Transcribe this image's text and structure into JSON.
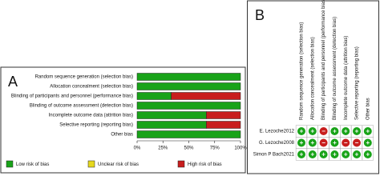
{
  "chart_data": [
    {
      "type": "stacked-barh",
      "panel_label": "A",
      "categories": [
        "Random sequence generation (selection bias)",
        "Allocation concealment (selection bias)",
        "Blinding of participants and personnel (performance bias)",
        "Blinding of outcome assessment (detection bias)",
        "Incomplete outcome data (attrition bias)",
        "Selective reporting (reporting bias)",
        "Other bias"
      ],
      "series": [
        {
          "name": "Low risk of bias",
          "color": "#19a319",
          "values": [
            100,
            100,
            33,
            100,
            67,
            67,
            100
          ]
        },
        {
          "name": "Unclear risk of bias",
          "color": "#e6d81e",
          "values": [
            0,
            0,
            0,
            0,
            0,
            0,
            0
          ]
        },
        {
          "name": "High risk of bias",
          "color": "#c81e1e",
          "values": [
            0,
            0,
            67,
            0,
            33,
            33,
            0
          ]
        }
      ],
      "xlim": [
        0,
        100
      ],
      "xticks": [
        {
          "value": 0,
          "label": "0%"
        },
        {
          "value": 25,
          "label": "25%"
        },
        {
          "value": 50,
          "label": "50%"
        },
        {
          "value": 75,
          "label": "75%"
        },
        {
          "value": 100,
          "label": "100%"
        }
      ]
    },
    {
      "type": "matrix",
      "panel_label": "B",
      "columns": [
        "Random sequence generation (selection bias)",
        "Allocation concealment (selection bias)",
        "Blinding of participants and personnel (performance bias)",
        "Blinding of outcome assessment (detection bias)",
        "Incomplete outcome data (attrition bias)",
        "Selective reporting (reporting bias)",
        "Other bias"
      ],
      "rows": [
        "E. Lezoche2012",
        "G. Lezoche2008",
        "Simon P Bach2021"
      ],
      "cells": [
        [
          "+",
          "+",
          "−",
          "+",
          "+",
          "+",
          "+"
        ],
        [
          "+",
          "+",
          "−",
          "+",
          "−",
          "−",
          "+"
        ],
        [
          "+",
          "+",
          "+",
          "+",
          "+",
          "+",
          "+"
        ]
      ],
      "symbol_colors": {
        "+": "#19a319",
        "−": "#c81e1e"
      }
    }
  ]
}
